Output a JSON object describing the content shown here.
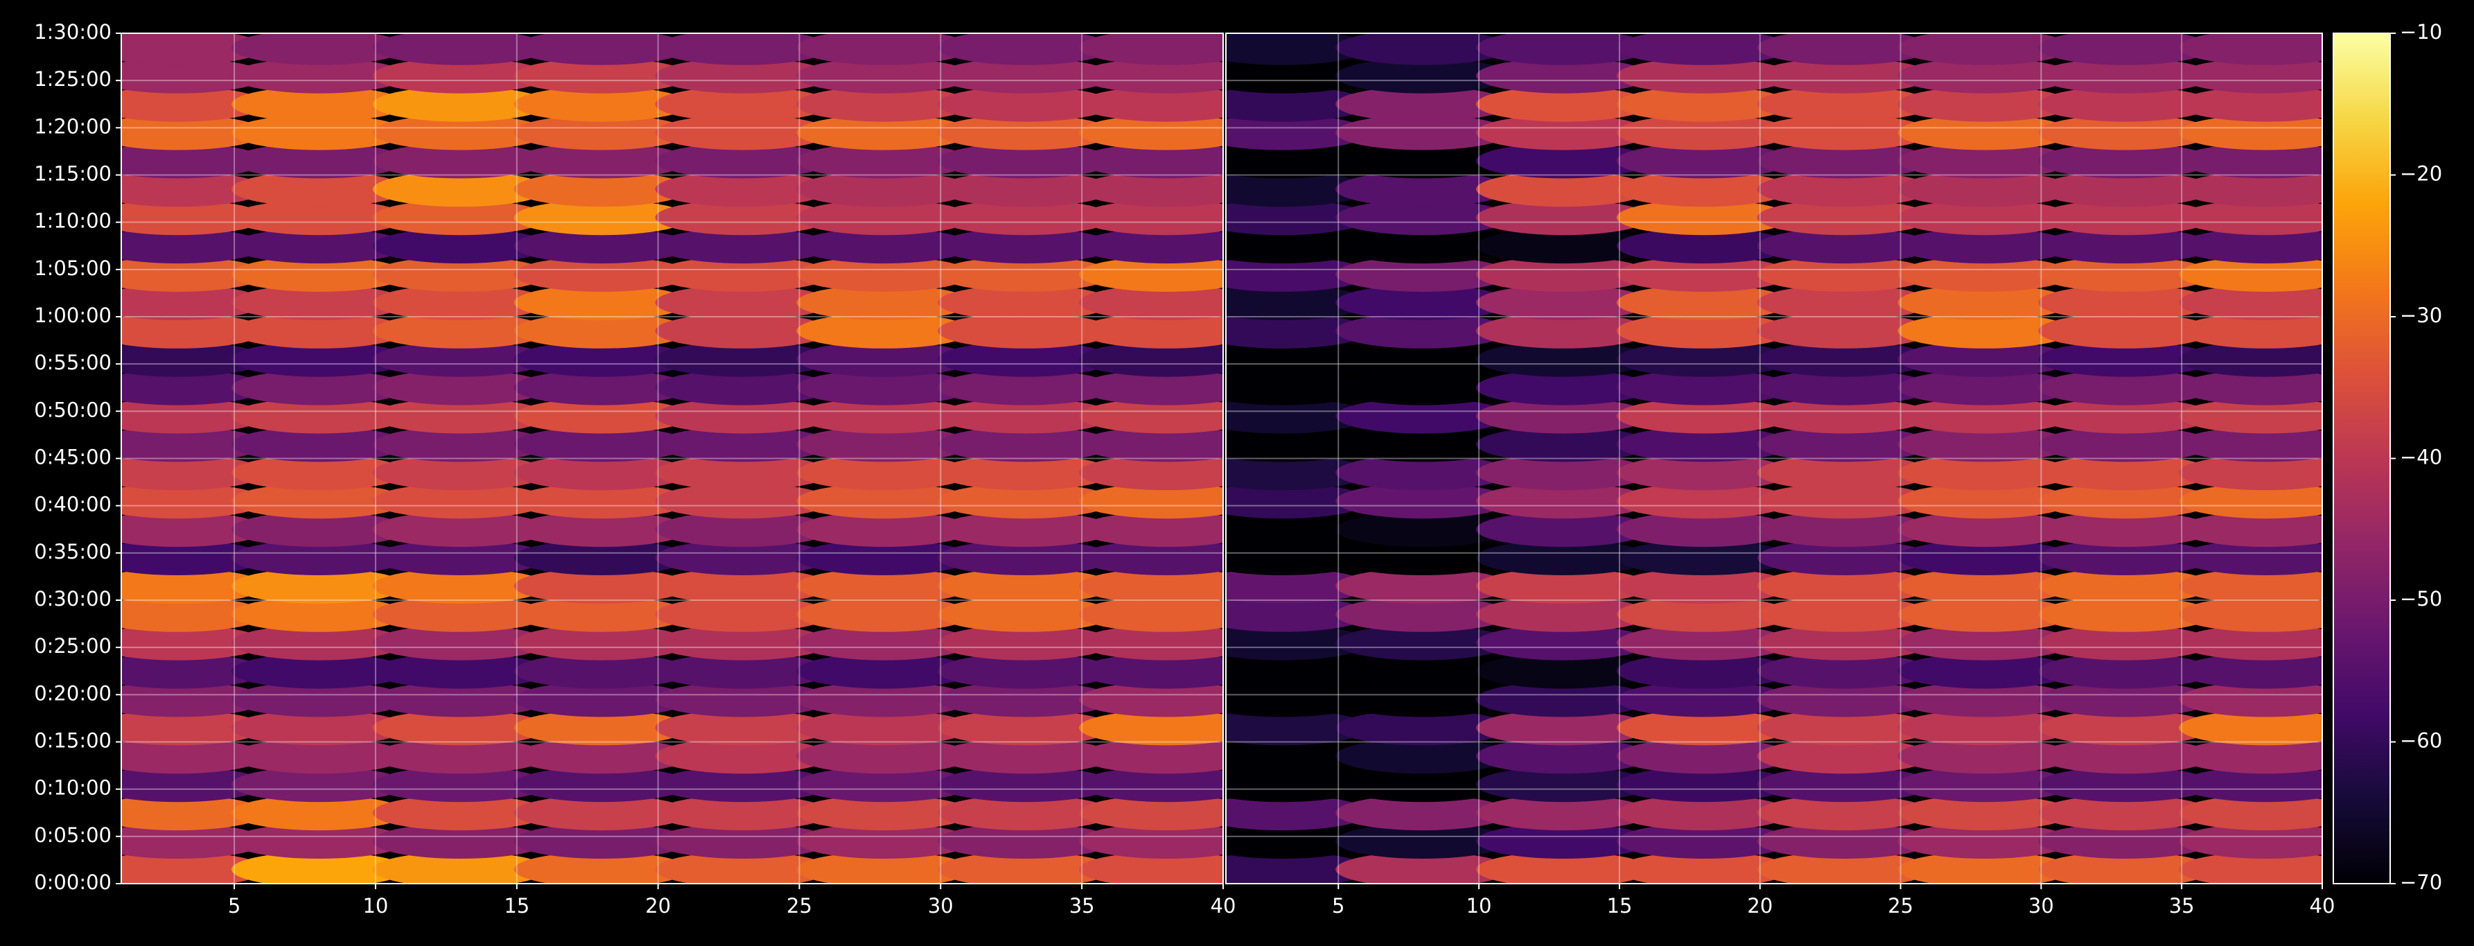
{
  "chart_data": {
    "type": "heatmap",
    "colormap": "inferno",
    "grid": true,
    "y": [
      1.5,
      4.5,
      7.5,
      10.5,
      13.5,
      16.5,
      19.5,
      22.5,
      25.5,
      28.5,
      31.5,
      34.5,
      37.5,
      40.5,
      43.5,
      46.5,
      49.5,
      52.5,
      55.5,
      58.5,
      61.5,
      64.5,
      67.5,
      70.5,
      73.5,
      76.5,
      79.5,
      82.5,
      85.5,
      88.5
    ],
    "ylim": [
      0,
      90
    ],
    "yticks": [
      {
        "value": 0,
        "label": "0:00:00"
      },
      {
        "value": 5,
        "label": "0:05:00"
      },
      {
        "value": 10,
        "label": "0:10:00"
      },
      {
        "value": 15,
        "label": "0:15:00"
      },
      {
        "value": 20,
        "label": "0:20:00"
      },
      {
        "value": 25,
        "label": "0:25:00"
      },
      {
        "value": 30,
        "label": "0:30:00"
      },
      {
        "value": 35,
        "label": "0:35:00"
      },
      {
        "value": 40,
        "label": "0:40:00"
      },
      {
        "value": 45,
        "label": "0:45:00"
      },
      {
        "value": 50,
        "label": "0:50:00"
      },
      {
        "value": 55,
        "label": "0:55:00"
      },
      {
        "value": 60,
        "label": "1:00:00"
      },
      {
        "value": 65,
        "label": "1:05:00"
      },
      {
        "value": 70,
        "label": "1:10:00"
      },
      {
        "value": 75,
        "label": "1:15:00"
      },
      {
        "value": 80,
        "label": "1:20:00"
      },
      {
        "value": 85,
        "label": "1:25:00"
      },
      {
        "value": 90,
        "label": "1:30:00"
      }
    ],
    "colorbar": {
      "lim": [
        -70,
        -10
      ],
      "ticks": [
        {
          "value": -10,
          "label": "−10"
        },
        {
          "value": -20,
          "label": "−20"
        },
        {
          "value": -30,
          "label": "−30"
        },
        {
          "value": -40,
          "label": "−40"
        },
        {
          "value": -50,
          "label": "−50"
        },
        {
          "value": -60,
          "label": "−60"
        },
        {
          "value": -70,
          "label": "−70"
        }
      ]
    },
    "panels": [
      {
        "x": [
          3,
          8,
          13,
          18,
          23,
          28,
          33,
          38
        ],
        "xlim": [
          1,
          40
        ],
        "xticks": [
          5,
          10,
          15,
          20,
          25,
          30,
          35,
          40
        ],
        "values": [
          [
            -35,
            -22,
            -24,
            -30,
            -32,
            -30,
            -32,
            -35
          ],
          [
            -45,
            -45,
            -48,
            -50,
            -48,
            -45,
            -48,
            -45
          ],
          [
            -30,
            -28,
            -35,
            -38,
            -38,
            -36,
            -38,
            -36
          ],
          [
            -55,
            -50,
            -52,
            -55,
            -55,
            -52,
            -55,
            -55
          ],
          [
            -45,
            -45,
            -45,
            -45,
            -40,
            -45,
            -45,
            -45
          ],
          [
            -38,
            -40,
            -35,
            -30,
            -38,
            -40,
            -38,
            -28
          ],
          [
            -48,
            -50,
            -50,
            -52,
            -50,
            -48,
            -50,
            -45
          ],
          [
            -55,
            -58,
            -58,
            -55,
            -55,
            -58,
            -55,
            -55
          ],
          [
            -40,
            -42,
            -45,
            -42,
            -42,
            -45,
            -42,
            -42
          ],
          [
            -30,
            -28,
            -32,
            -32,
            -35,
            -32,
            -30,
            -32
          ],
          [
            -28,
            -25,
            -28,
            -35,
            -35,
            -32,
            -30,
            -32
          ],
          [
            -58,
            -55,
            -55,
            -60,
            -55,
            -58,
            -55,
            -55
          ],
          [
            -45,
            -48,
            -45,
            -45,
            -48,
            -45,
            -45,
            -45
          ],
          [
            -35,
            -33,
            -35,
            -35,
            -38,
            -33,
            -32,
            -30
          ],
          [
            -38,
            -35,
            -38,
            -40,
            -38,
            -35,
            -35,
            -38
          ],
          [
            -50,
            -52,
            -50,
            -52,
            -52,
            -48,
            -50,
            -50
          ],
          [
            -40,
            -38,
            -38,
            -35,
            -40,
            -40,
            -40,
            -38
          ],
          [
            -55,
            -50,
            -48,
            -52,
            -55,
            -52,
            -50,
            -50
          ],
          [
            -60,
            -58,
            -55,
            -58,
            -60,
            -55,
            -58,
            -60
          ],
          [
            -35,
            -35,
            -32,
            -30,
            -38,
            -28,
            -35,
            -35
          ],
          [
            -40,
            -38,
            -35,
            -28,
            -38,
            -30,
            -35,
            -38
          ],
          [
            -32,
            -30,
            -32,
            -35,
            -35,
            -33,
            -32,
            -28
          ],
          [
            -55,
            -55,
            -58,
            -55,
            -55,
            -55,
            -55,
            -55
          ],
          [
            -35,
            -35,
            -32,
            -25,
            -38,
            -40,
            -40,
            -40
          ],
          [
            -40,
            -35,
            -25,
            -30,
            -40,
            -42,
            -42,
            -42
          ],
          [
            -50,
            -50,
            -48,
            -48,
            -50,
            -48,
            -50,
            -50
          ],
          [
            -30,
            -28,
            -30,
            -32,
            -35,
            -30,
            -32,
            -30
          ],
          [
            -35,
            -28,
            -24,
            -28,
            -35,
            -38,
            -40,
            -40
          ],
          [
            -45,
            -45,
            -40,
            -38,
            -42,
            -45,
            -45,
            -45
          ],
          [
            -45,
            -48,
            -50,
            -50,
            -50,
            -48,
            -50,
            -48
          ]
        ]
      },
      {
        "x": [
          3,
          8,
          13,
          18,
          23,
          28,
          33,
          38
        ],
        "xlim": [
          1,
          40
        ],
        "xticks": [
          5,
          10,
          15,
          20,
          25,
          30,
          35,
          40
        ],
        "values": [
          [
            -60,
            -42,
            -34,
            -34,
            -32,
            -30,
            -32,
            -35
          ],
          [
            -70,
            -65,
            -58,
            -54,
            -48,
            -45,
            -48,
            -45
          ],
          [
            -55,
            -48,
            -45,
            -42,
            -38,
            -36,
            -38,
            -36
          ],
          [
            -70,
            -70,
            -62,
            -59,
            -55,
            -52,
            -55,
            -55
          ],
          [
            -70,
            -65,
            -55,
            -49,
            -40,
            -45,
            -45,
            -45
          ],
          [
            -63,
            -60,
            -45,
            -34,
            -38,
            -40,
            -38,
            -28
          ],
          [
            -70,
            -70,
            -60,
            -56,
            -50,
            -48,
            -50,
            -45
          ],
          [
            -70,
            -70,
            -68,
            -59,
            -55,
            -58,
            -55,
            -55
          ],
          [
            -65,
            -62,
            -55,
            -46,
            -42,
            -45,
            -42,
            -42
          ],
          [
            -55,
            -48,
            -42,
            -36,
            -35,
            -32,
            -30,
            -32
          ],
          [
            -53,
            -45,
            -38,
            -39,
            -35,
            -32,
            -30,
            -32
          ],
          [
            -70,
            -70,
            -65,
            -64,
            -55,
            -58,
            -55,
            -55
          ],
          [
            -70,
            -68,
            -55,
            -49,
            -48,
            -45,
            -45,
            -45
          ],
          [
            -60,
            -53,
            -45,
            -39,
            -38,
            -33,
            -32,
            -30
          ],
          [
            -63,
            -55,
            -48,
            -44,
            -38,
            -35,
            -35,
            -38
          ],
          [
            -70,
            -70,
            -60,
            -56,
            -52,
            -48,
            -50,
            -50
          ],
          [
            -65,
            -58,
            -48,
            -39,
            -40,
            -40,
            -40,
            -38
          ],
          [
            -70,
            -70,
            -58,
            -56,
            -55,
            -52,
            -50,
            -50
          ],
          [
            -70,
            -70,
            -65,
            -62,
            -60,
            -55,
            -58,
            -60
          ],
          [
            -60,
            -55,
            -42,
            -34,
            -38,
            -28,
            -35,
            -35
          ],
          [
            -65,
            -58,
            -45,
            -32,
            -38,
            -30,
            -35,
            -38
          ],
          [
            -57,
            -50,
            -42,
            -39,
            -35,
            -33,
            -32,
            -28
          ],
          [
            -70,
            -70,
            -68,
            -59,
            -55,
            -55,
            -55,
            -55
          ],
          [
            -60,
            -55,
            -42,
            -29,
            -38,
            -40,
            -40,
            -40
          ],
          [
            -65,
            -55,
            -35,
            -34,
            -40,
            -42,
            -42,
            -42
          ],
          [
            -70,
            -70,
            -58,
            -52,
            -50,
            -48,
            -50,
            -50
          ],
          [
            -55,
            -48,
            -40,
            -36,
            -35,
            -30,
            -32,
            -30
          ],
          [
            -60,
            -48,
            -34,
            -32,
            -35,
            -38,
            -40,
            -40
          ],
          [
            -70,
            -65,
            -50,
            -42,
            -42,
            -45,
            -45,
            -45
          ],
          [
            -65,
            -60,
            -55,
            -54,
            -50,
            -48,
            -50,
            -48
          ]
        ]
      }
    ]
  }
}
